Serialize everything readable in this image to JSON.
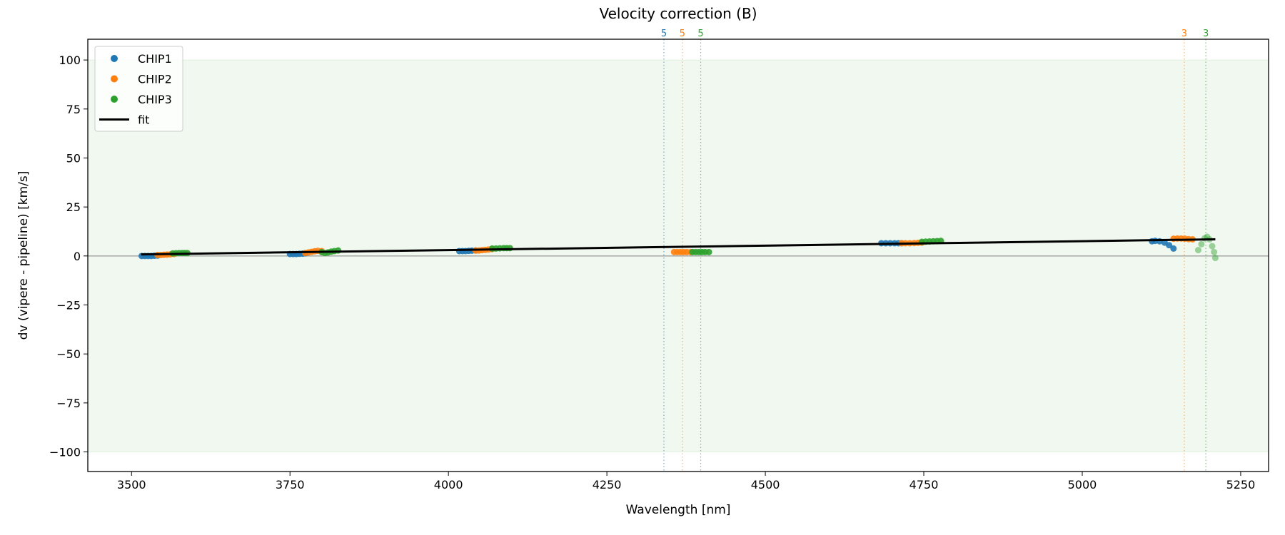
{
  "chart_data": {
    "type": "scatter",
    "title": "Velocity correction (B)",
    "xlabel": "Wavelength [nm]",
    "ylabel": "dv (vipere - pipeline) [km/s]",
    "xlim": [
      3431,
      5294
    ],
    "ylim": [
      -110,
      110.6
    ],
    "xticks": [
      3500,
      3750,
      4000,
      4250,
      4500,
      4750,
      5000,
      5250
    ],
    "yticks": [
      100,
      75,
      50,
      25,
      0,
      -25,
      -50,
      -75,
      -100
    ],
    "xtick_labels": [
      "3500",
      "3750",
      "4000",
      "4250",
      "4500",
      "4750",
      "5000",
      "5250"
    ],
    "ytick_labels": [
      "100",
      "75",
      "50",
      "25",
      "0",
      "−25",
      "−50",
      "−75",
      "−100"
    ],
    "grid": false,
    "legend_placement": "upper-left",
    "shaded_band": {
      "y0": -100,
      "y1": 100,
      "color": "#2ca02c"
    },
    "zero_line": {
      "y": 0,
      "color": "#808080"
    },
    "series": [
      {
        "name": "CHIP1",
        "color": "#1f77b4",
        "points": [
          [
            3516,
            0
          ],
          [
            3521,
            0
          ],
          [
            3526,
            0
          ],
          [
            3531,
            0
          ],
          [
            3536,
            0.1
          ],
          [
            3541,
            0.2
          ],
          [
            3750,
            1
          ],
          [
            3755,
            1
          ],
          [
            3760,
            1
          ],
          [
            3765,
            1.1
          ],
          [
            3770,
            1.2
          ],
          [
            3774,
            1.3
          ],
          [
            4017,
            2.5
          ],
          [
            4022,
            2.5
          ],
          [
            4027,
            2.5
          ],
          [
            4032,
            2.6
          ],
          [
            4037,
            2.7
          ],
          [
            4043,
            2.8
          ],
          [
            4683,
            6.5
          ],
          [
            4690,
            6.5
          ],
          [
            4697,
            6.5
          ],
          [
            4704,
            6.5
          ],
          [
            4710,
            6.5
          ],
          [
            4715,
            6.5
          ],
          [
            5110,
            7.5
          ],
          [
            5115,
            7.7
          ],
          [
            5122,
            7.5
          ],
          [
            5130,
            6.8
          ],
          [
            5137,
            5.5
          ],
          [
            5144,
            3.8
          ]
        ]
      },
      {
        "name": "CHIP2",
        "color": "#ff7f0e",
        "points": [
          [
            3541,
            0.5
          ],
          [
            3546,
            0.5
          ],
          [
            3551,
            0.6
          ],
          [
            3556,
            0.7
          ],
          [
            3561,
            0.8
          ],
          [
            3567,
            1
          ],
          [
            3774,
            1.5
          ],
          [
            3779,
            1.8
          ],
          [
            3784,
            2.1
          ],
          [
            3789,
            2.4
          ],
          [
            3794,
            2.6
          ],
          [
            3800,
            2.5
          ],
          [
            4043,
            2.8
          ],
          [
            4048,
            2.8
          ],
          [
            4053,
            3
          ],
          [
            4058,
            3.1
          ],
          [
            4063,
            3.3
          ],
          [
            4069,
            3.5
          ],
          [
            4356,
            2
          ],
          [
            4361,
            2
          ],
          [
            4366,
            2
          ],
          [
            4371,
            2
          ],
          [
            4376,
            2
          ],
          [
            4382,
            2
          ],
          [
            4715,
            6.5
          ],
          [
            4721,
            6.5
          ],
          [
            4728,
            6.5
          ],
          [
            4735,
            6.6
          ],
          [
            4741,
            6.7
          ],
          [
            4747,
            6.8
          ],
          [
            5144,
            8.8
          ],
          [
            5150,
            8.9
          ],
          [
            5156,
            8.9
          ],
          [
            5162,
            8.8
          ],
          [
            5168,
            8.6
          ],
          [
            5174,
            8.5
          ]
        ]
      },
      {
        "name": "CHIP3",
        "color": "#2ca02c",
        "points": [
          [
            3565,
            1.3
          ],
          [
            3570,
            1.4
          ],
          [
            3575,
            1.5
          ],
          [
            3580,
            1.5
          ],
          [
            3584,
            1.5
          ],
          [
            3588,
            1.5
          ],
          [
            3800,
            2
          ],
          [
            3805,
            1.5
          ],
          [
            3810,
            1.8
          ],
          [
            3815,
            2.2
          ],
          [
            3820,
            2.5
          ],
          [
            3826,
            2.8
          ],
          [
            4069,
            3.8
          ],
          [
            4075,
            3.8
          ],
          [
            4081,
            3.9
          ],
          [
            4087,
            4
          ],
          [
            4092,
            4
          ],
          [
            4097,
            4
          ],
          [
            4385,
            2
          ],
          [
            4390,
            2
          ],
          [
            4395,
            2
          ],
          [
            4400,
            2
          ],
          [
            4405,
            2
          ],
          [
            4411,
            2
          ],
          [
            4747,
            7.2
          ],
          [
            4753,
            7.3
          ],
          [
            4759,
            7.4
          ],
          [
            4765,
            7.5
          ],
          [
            4771,
            7.6
          ],
          [
            4777,
            7.7
          ],
          [
            5183,
            3
          ],
          [
            5188,
            6
          ],
          [
            5193,
            9
          ],
          [
            5197,
            9.8
          ],
          [
            5201,
            8.5
          ],
          [
            5205,
            5
          ],
          [
            5208,
            2
          ],
          [
            5210,
            -1
          ]
        ]
      },
      {
        "name": "fit",
        "color": "#000000",
        "type": "line",
        "points": [
          [
            3515,
            0.8
          ],
          [
            5210,
            8.5
          ]
        ]
      }
    ],
    "vertical_markers": [
      {
        "x": 4340,
        "label": "5",
        "color": "#1f77b4"
      },
      {
        "x": 4369,
        "label": "5",
        "color": "#ff7f0e"
      },
      {
        "x": 4398,
        "label": "5",
        "color": "#2ca02c"
      },
      {
        "x": 5161,
        "label": "3",
        "color": "#ff7f0e"
      },
      {
        "x": 5195,
        "label": "3",
        "color": "#2ca02c"
      }
    ]
  }
}
